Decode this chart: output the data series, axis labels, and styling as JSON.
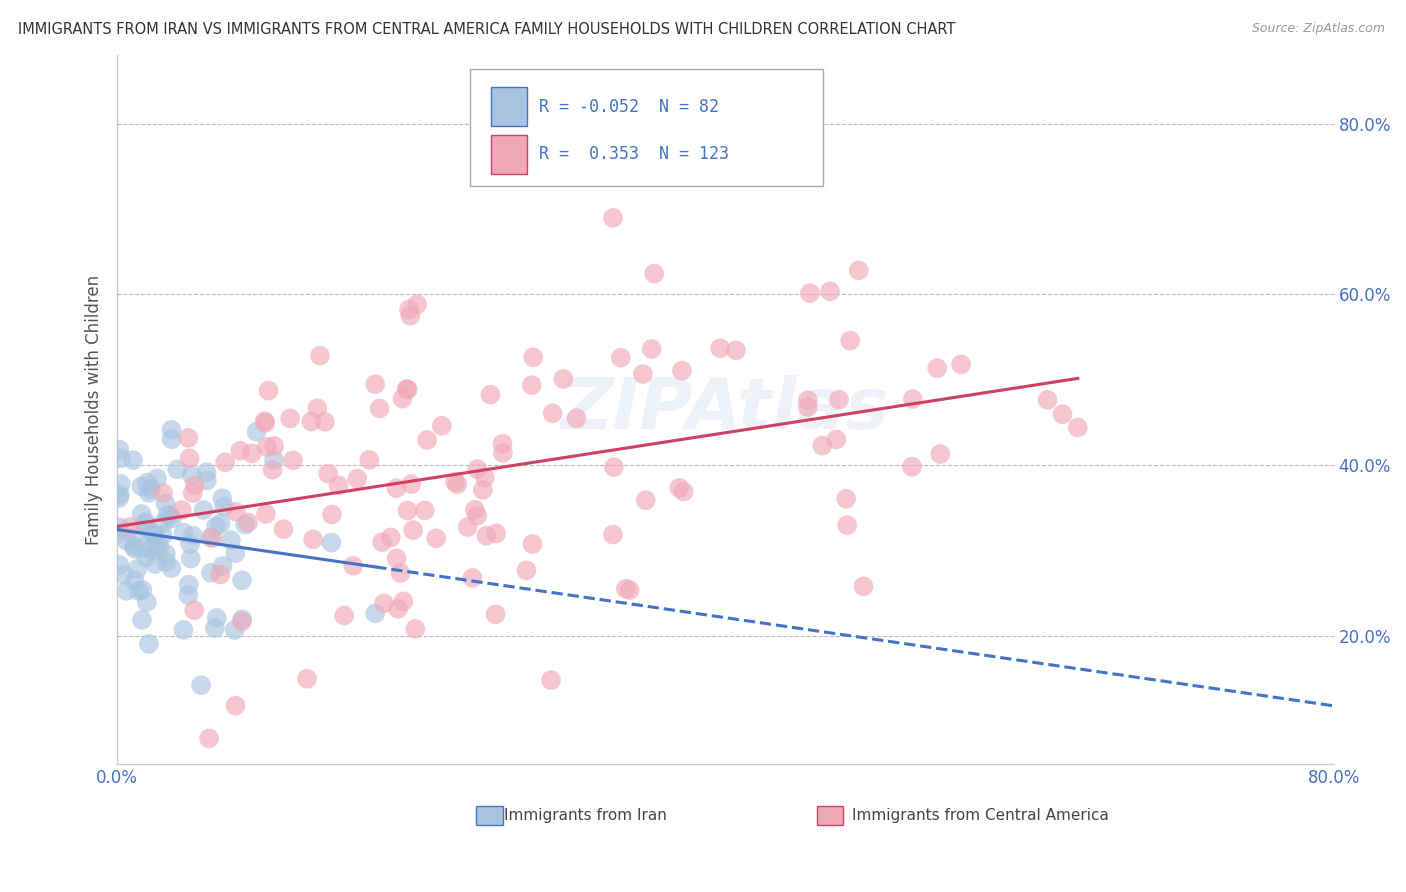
{
  "title": "IMMIGRANTS FROM IRAN VS IMMIGRANTS FROM CENTRAL AMERICA FAMILY HOUSEHOLDS WITH CHILDREN CORRELATION CHART",
  "source": "Source: ZipAtlas.com",
  "ylabel": "Family Households with Children",
  "iran_scatter_color": "#a8c4e0",
  "central_scatter_color": "#f0a8b8",
  "iran_line_color": "#4472c4",
  "central_line_color": "#d04060",
  "background_color": "#ffffff",
  "grid_color": "#bbbbbb",
  "title_color": "#333333",
  "watermark": "ZIPAtlas",
  "xmin": 0.0,
  "xmax": 0.8,
  "ymin": 0.05,
  "ymax": 0.88,
  "iran_n": 82,
  "central_n": 123,
  "iran_R": -0.052,
  "central_R": 0.353,
  "legend_R_iran": "-0.052",
  "legend_N_iran": "82",
  "legend_R_central": "0.353",
  "legend_N_central": "123"
}
